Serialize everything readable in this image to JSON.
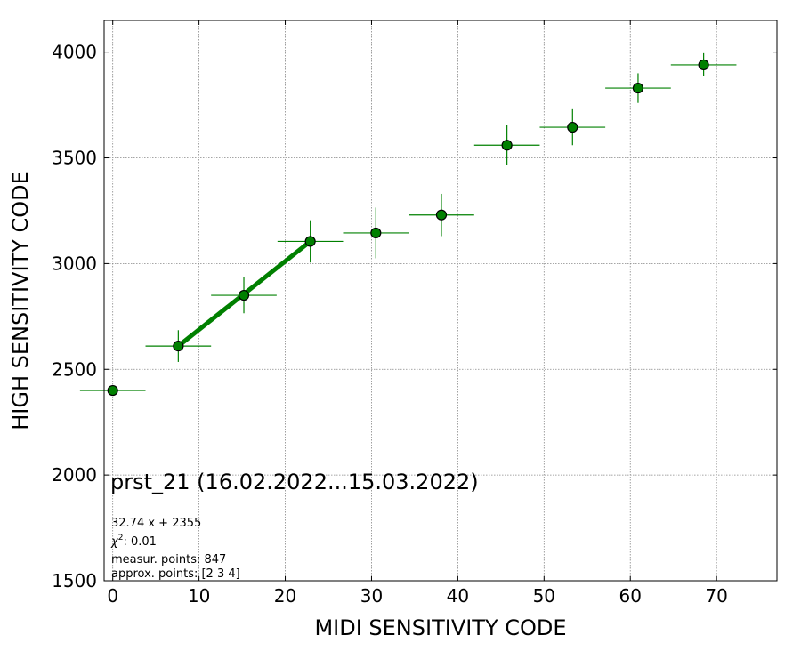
{
  "chart_data": {
    "type": "scatter",
    "xlabel": "MIDI SENSITIVITY CODE",
    "ylabel": "HIGH SENSITIVITY CODE",
    "xlim": [
      -1,
      77
    ],
    "ylim": [
      1500,
      4150
    ],
    "xticks": [
      0,
      10,
      20,
      30,
      40,
      50,
      60,
      70
    ],
    "yticks": [
      1500,
      2000,
      2500,
      3000,
      3500,
      4000
    ],
    "grid": true,
    "colors": {
      "marker": "#008000",
      "marker_edge": "#000000",
      "fit_line": "#008000",
      "grid": "#888888"
    },
    "points": [
      {
        "x": 0.0,
        "y": 2400,
        "xerr": 3.8,
        "yerr": 0
      },
      {
        "x": 7.6,
        "y": 2610,
        "xerr": 3.8,
        "yerr": 75
      },
      {
        "x": 15.2,
        "y": 2850,
        "xerr": 3.8,
        "yerr": 85
      },
      {
        "x": 22.9,
        "y": 3105,
        "xerr": 3.8,
        "yerr": 100
      },
      {
        "x": 30.5,
        "y": 3145,
        "xerr": 3.8,
        "yerr": 120
      },
      {
        "x": 38.1,
        "y": 3230,
        "xerr": 3.8,
        "yerr": 100
      },
      {
        "x": 45.7,
        "y": 3560,
        "xerr": 3.8,
        "yerr": 95
      },
      {
        "x": 53.3,
        "y": 3645,
        "xerr": 3.8,
        "yerr": 85
      },
      {
        "x": 60.9,
        "y": 3830,
        "xerr": 3.8,
        "yerr": 70
      },
      {
        "x": 68.5,
        "y": 3940,
        "xerr": 3.8,
        "yerr": 55
      }
    ],
    "fit": {
      "x_start": 7.6,
      "x_end": 22.9,
      "y_start": 2610,
      "y_end": 3105
    },
    "annotation": {
      "title": "prst_21 (16.02.2022...15.03.2022)",
      "equation": "32.74 x + 2355",
      "chi_prefix": "χ",
      "chi_sup": "2",
      "chi_value": ": 0.01",
      "measured": "measur. points: 847",
      "approx": "approx. points: [2 3 4]"
    }
  }
}
